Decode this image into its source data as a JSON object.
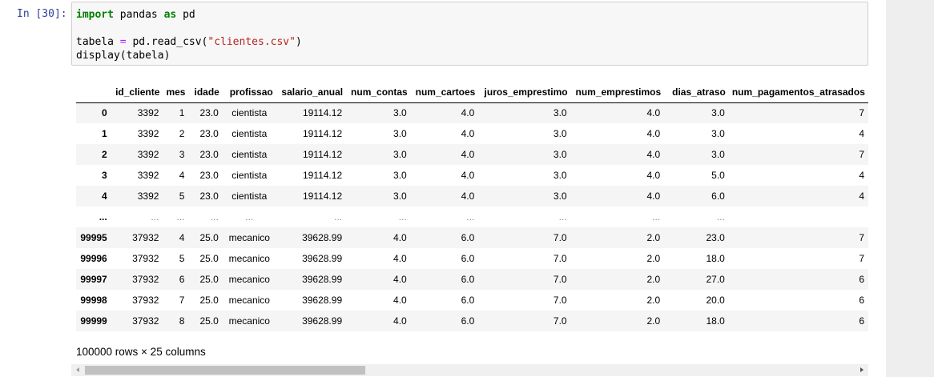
{
  "cell": {
    "prompt": "In [30]:",
    "code": {
      "line1": {
        "kw1": "import",
        "mod": " pandas ",
        "kw2": "as",
        "alias": " pd"
      },
      "line3": {
        "var": "tabela ",
        "eq": "=",
        "call": " pd.read_csv(",
        "arg": "\"clientes.csv\"",
        "close": ")"
      },
      "line4": "display(tabela)"
    }
  },
  "table": {
    "columns": [
      "id_cliente",
      "mes",
      "idade",
      "profissao",
      "salario_anual",
      "num_contas",
      "num_cartoes",
      "juros_emprestimo",
      "num_emprestimos",
      "dias_atraso",
      "num_pagamentos_atrasados"
    ],
    "rows": [
      {
        "index": "0",
        "cells": [
          "3392",
          "1",
          "23.0",
          "cientista",
          "19114.12",
          "3.0",
          "4.0",
          "3.0",
          "4.0",
          "3.0",
          "7"
        ]
      },
      {
        "index": "1",
        "cells": [
          "3392",
          "2",
          "23.0",
          "cientista",
          "19114.12",
          "3.0",
          "4.0",
          "3.0",
          "4.0",
          "3.0",
          "4"
        ]
      },
      {
        "index": "2",
        "cells": [
          "3392",
          "3",
          "23.0",
          "cientista",
          "19114.12",
          "3.0",
          "4.0",
          "3.0",
          "4.0",
          "3.0",
          "7"
        ]
      },
      {
        "index": "3",
        "cells": [
          "3392",
          "4",
          "23.0",
          "cientista",
          "19114.12",
          "3.0",
          "4.0",
          "3.0",
          "4.0",
          "5.0",
          "4"
        ]
      },
      {
        "index": "4",
        "cells": [
          "3392",
          "5",
          "23.0",
          "cientista",
          "19114.12",
          "3.0",
          "4.0",
          "3.0",
          "4.0",
          "6.0",
          "4"
        ]
      },
      {
        "index": "...",
        "cells": [
          "...",
          "...",
          "...",
          "...",
          "...",
          "...",
          "...",
          "...",
          "...",
          "...",
          ""
        ]
      },
      {
        "index": "99995",
        "cells": [
          "37932",
          "4",
          "25.0",
          "mecanico",
          "39628.99",
          "4.0",
          "6.0",
          "7.0",
          "2.0",
          "23.0",
          "7"
        ]
      },
      {
        "index": "99996",
        "cells": [
          "37932",
          "5",
          "25.0",
          "mecanico",
          "39628.99",
          "4.0",
          "6.0",
          "7.0",
          "2.0",
          "18.0",
          "7"
        ]
      },
      {
        "index": "99997",
        "cells": [
          "37932",
          "6",
          "25.0",
          "mecanico",
          "39628.99",
          "4.0",
          "6.0",
          "7.0",
          "2.0",
          "27.0",
          "6"
        ]
      },
      {
        "index": "99998",
        "cells": [
          "37932",
          "7",
          "25.0",
          "mecanico",
          "39628.99",
          "4.0",
          "6.0",
          "7.0",
          "2.0",
          "20.0",
          "6"
        ]
      },
      {
        "index": "99999",
        "cells": [
          "37932",
          "8",
          "25.0",
          "mecanico",
          "39628.99",
          "4.0",
          "6.0",
          "7.0",
          "2.0",
          "18.0",
          "6"
        ]
      }
    ]
  },
  "shape_text": "100000 rows × 25 columns",
  "scrollbar": {
    "position_fraction": 0.0
  }
}
